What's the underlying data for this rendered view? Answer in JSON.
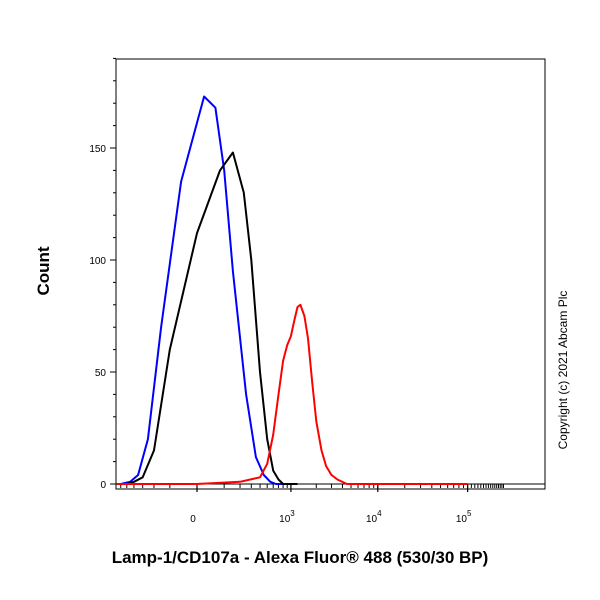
{
  "chart_data": {
    "type": "line",
    "title": "",
    "xlabel": "Lamp-1/CD107a - Alexa Fluor® 488 (530/30 BP)",
    "ylabel": "Count",
    "x_scale": "biexponential",
    "y_ticks": [
      "0",
      "50",
      "100",
      "150"
    ],
    "ylim": [
      0,
      190
    ],
    "x_ticks": [
      {
        "label": "0",
        "value": 0
      },
      {
        "base": "10",
        "exp": "3",
        "value": 1000
      },
      {
        "base": "10",
        "exp": "4",
        "value": 10000
      },
      {
        "base": "10",
        "exp": "5",
        "value": 100000
      }
    ],
    "grid": false,
    "series": [
      {
        "color": "#0000ff",
        "x": [
          -800,
          -600,
          -450,
          -350,
          -250,
          -150,
          -50,
          20,
          60,
          100,
          150,
          250,
          350,
          450,
          550,
          650,
          800,
          1000
        ],
        "y": [
          0,
          0,
          1,
          4,
          20,
          70,
          135,
          173,
          168,
          140,
          95,
          40,
          12,
          4,
          1,
          0,
          0,
          0
        ]
      },
      {
        "color": "#000000",
        "x": [
          -700,
          -500,
          -400,
          -300,
          -200,
          -100,
          0,
          80,
          150,
          230,
          300,
          400,
          500,
          600,
          700,
          800,
          1000,
          1200
        ],
        "y": [
          0,
          0,
          1,
          3,
          15,
          60,
          112,
          140,
          148,
          130,
          100,
          50,
          20,
          6,
          2,
          0,
          0,
          0
        ]
      },
      {
        "color": "#ff0000",
        "x": [
          -800,
          0,
          200,
          400,
          500,
          600,
          700,
          800,
          900,
          1000,
          1100,
          1200,
          1300,
          1450,
          1600,
          1800,
          2000,
          2300,
          2600,
          3000,
          3500,
          4500,
          6000,
          100000
        ],
        "y": [
          0,
          0,
          1,
          3,
          9,
          22,
          40,
          55,
          62,
          66,
          73,
          79,
          80,
          75,
          65,
          45,
          28,
          15,
          8,
          4,
          2,
          0,
          0,
          0
        ]
      }
    ],
    "copyright": "Copyright (c) 2021 Abcam Plc"
  }
}
